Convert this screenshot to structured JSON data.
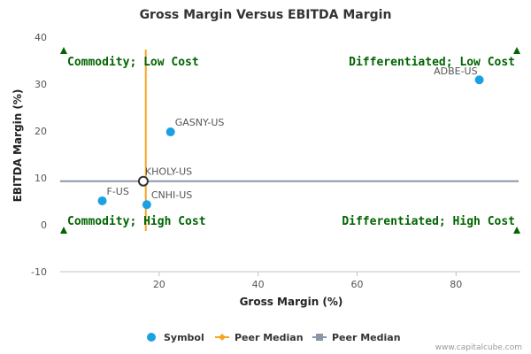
{
  "chart_data": {
    "type": "scatter",
    "title": "Gross Margin Versus EBITDA Margin",
    "xlabel": "Gross Margin (%)",
    "ylabel": "EBITDA Margin (%)",
    "xlim": [
      0,
      93
    ],
    "ylim": [
      -10,
      40
    ],
    "x_ticks": [
      20,
      40,
      60,
      80
    ],
    "y_ticks": [
      40,
      30,
      20,
      10,
      0,
      -10
    ],
    "points": [
      {
        "label": "ADBE-US",
        "x": 84.7,
        "y": 30.9,
        "color": "#1ba1e2"
      },
      {
        "label": "GASNY-US",
        "x": 22.3,
        "y": 19.8,
        "color": "#1ba1e2"
      },
      {
        "label": "F-US",
        "x": 8.5,
        "y": 5.1,
        "color": "#1ba1e2"
      },
      {
        "label": "CNHI-US",
        "x": 17.5,
        "y": 4.3,
        "color": "#1ba1e2"
      }
    ],
    "highlight": {
      "label": "KHOLY-US",
      "x": 16.8,
      "y": 9.3,
      "color": "#333333"
    },
    "peer_median_x": {
      "value": 17.3,
      "color": "#f5a623"
    },
    "peer_median_y": {
      "value": 9.3,
      "color": "#8c96a8"
    },
    "quadrants": {
      "top_left": "Commodity; Low Cost",
      "top_right": "Differentiated; Low Cost",
      "bottom_left": "Commodity; High Cost",
      "bottom_right": "Differentiated; High Cost"
    },
    "legend": [
      {
        "label": "Symbol",
        "color": "#1ba1e2",
        "marker": "circle"
      },
      {
        "label": "Peer Median",
        "color": "#f5a623",
        "marker": "diamond-line"
      },
      {
        "label": "Peer Median",
        "color": "#8c96a8",
        "marker": "square-line"
      }
    ],
    "legend_position": "bottom",
    "grid": false,
    "quadrant_color": "#006400"
  },
  "credit": "www.capitalcube.com"
}
